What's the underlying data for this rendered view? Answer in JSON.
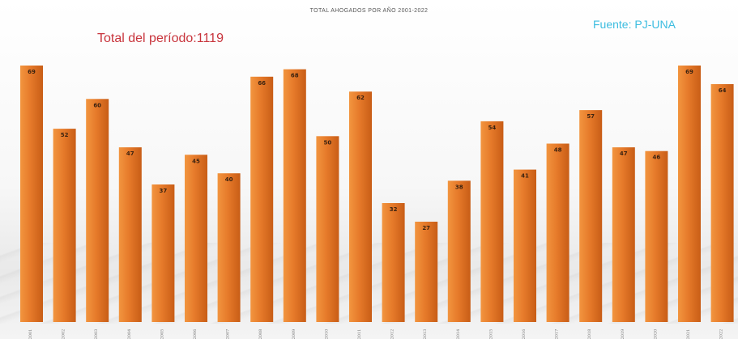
{
  "chart_data": {
    "type": "bar",
    "title": "TOTAL AHOGADOS POR AÑO 2001-2022",
    "categories": [
      "2001",
      "2002",
      "2003",
      "2004",
      "2005",
      "2006",
      "2007",
      "2008",
      "2009",
      "2010",
      "2011",
      "2012",
      "2013",
      "2014",
      "2015",
      "2016",
      "2017",
      "2018",
      "2019",
      "2020",
      "2021",
      "2022"
    ],
    "values": [
      69,
      52,
      60,
      47,
      37,
      45,
      40,
      66,
      68,
      50,
      62,
      32,
      27,
      38,
      54,
      41,
      48,
      57,
      47,
      46,
      69,
      64
    ],
    "xlabel": "",
    "ylabel": "",
    "ylim": [
      0,
      69
    ],
    "grid": false,
    "bar_color": "#e87a2c",
    "annotations": {
      "total": "Total del período:1119",
      "source": "Fuente: PJ-UNA"
    }
  }
}
